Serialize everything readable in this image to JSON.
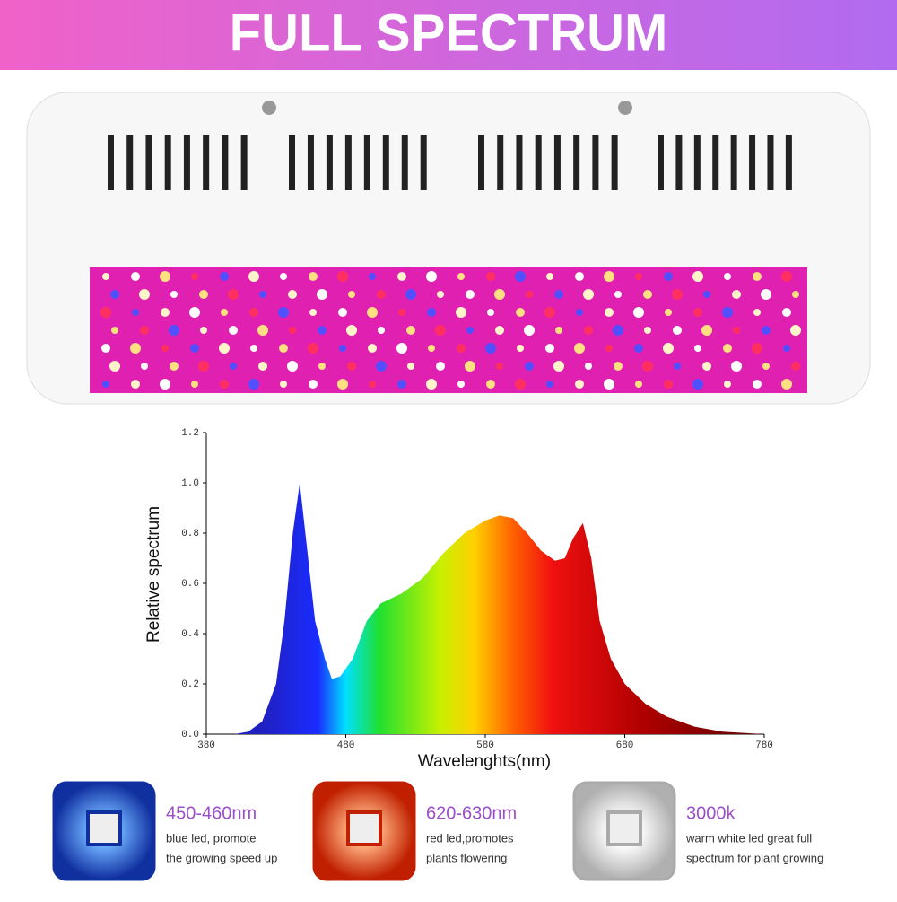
{
  "banner": {
    "title": "FULL SPECTRUM"
  },
  "chart_data": {
    "type": "area",
    "x_label": "Wavelenghts(nm)",
    "y_label": "Relative spectrum",
    "x": [
      380,
      400,
      410,
      420,
      430,
      436,
      442,
      447,
      452,
      458,
      465,
      470,
      476,
      485,
      495,
      505,
      520,
      535,
      550,
      565,
      580,
      590,
      600,
      610,
      620,
      630,
      637,
      643,
      650,
      656,
      662,
      670,
      680,
      695,
      710,
      730,
      750,
      780
    ],
    "values": [
      0,
      0,
      0.01,
      0.05,
      0.2,
      0.45,
      0.8,
      1.0,
      0.75,
      0.45,
      0.3,
      0.22,
      0.23,
      0.3,
      0.45,
      0.52,
      0.56,
      0.62,
      0.72,
      0.8,
      0.85,
      0.87,
      0.86,
      0.8,
      0.73,
      0.69,
      0.7,
      0.78,
      0.84,
      0.7,
      0.45,
      0.3,
      0.2,
      0.12,
      0.07,
      0.03,
      0.01,
      0
    ],
    "xlim": [
      380,
      780
    ],
    "xticks": [
      380,
      480,
      580,
      680,
      780
    ],
    "ylim": [
      0,
      1.2
    ],
    "yticks": [
      {
        "value": 0,
        "label": "0.0"
      },
      0.2,
      0.4,
      0.6,
      0.8,
      {
        "value": 1,
        "label": "1.0"
      },
      1.2
    ]
  },
  "features": [
    {
      "title": "450-460nm",
      "lines": [
        "blue led, promote",
        "the growing speed up"
      ]
    },
    {
      "title": "620-630nm",
      "lines": [
        "red led,promotes",
        "plants flowering"
      ]
    },
    {
      "title": "3000k",
      "lines": [
        "warm white led great full",
        "spectrum for plant growing"
      ]
    }
  ]
}
